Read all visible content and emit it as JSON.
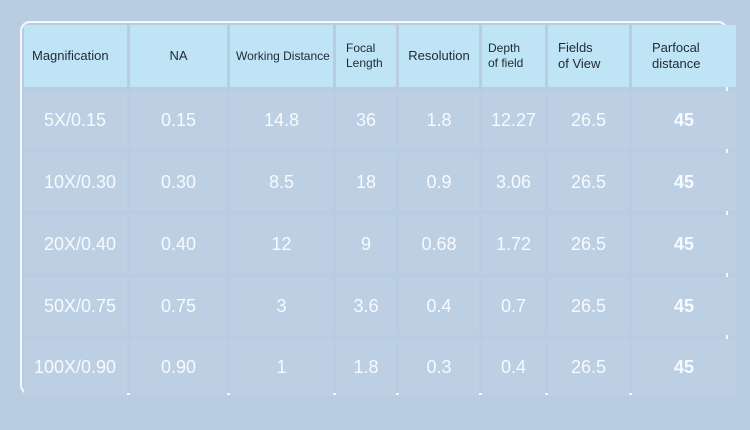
{
  "headers": [
    {
      "line1": "Magnification",
      "line2": ""
    },
    {
      "line1": "NA",
      "line2": ""
    },
    {
      "line1": "Working Distance",
      "line2": ""
    },
    {
      "line1": "Focal",
      "line2": "Length"
    },
    {
      "line1": "Resolution",
      "line2": ""
    },
    {
      "line1": "Depth",
      "line2": "of field"
    },
    {
      "line1": "Fields",
      "line2": "of View"
    },
    {
      "line1": "Parfocal",
      "line2": "distance"
    }
  ],
  "rows": [
    [
      "5X/0.15",
      "0.15",
      "14.8",
      "36",
      "1.8",
      "12.27",
      "26.5",
      "45"
    ],
    [
      "10X/0.30",
      "0.30",
      "8.5",
      "18",
      "0.9",
      "3.06",
      "26.5",
      "45"
    ],
    [
      "20X/0.40",
      "0.40",
      "12",
      "9",
      "0.68",
      "1.72",
      "26.5",
      "45"
    ],
    [
      "50X/0.75",
      "0.75",
      "3",
      "3.6",
      "0.4",
      "0.7",
      "26.5",
      "45"
    ],
    [
      "100X/0.90",
      "0.90",
      "1",
      "1.8",
      "0.3",
      "0.4",
      "26.5",
      "45"
    ]
  ]
}
